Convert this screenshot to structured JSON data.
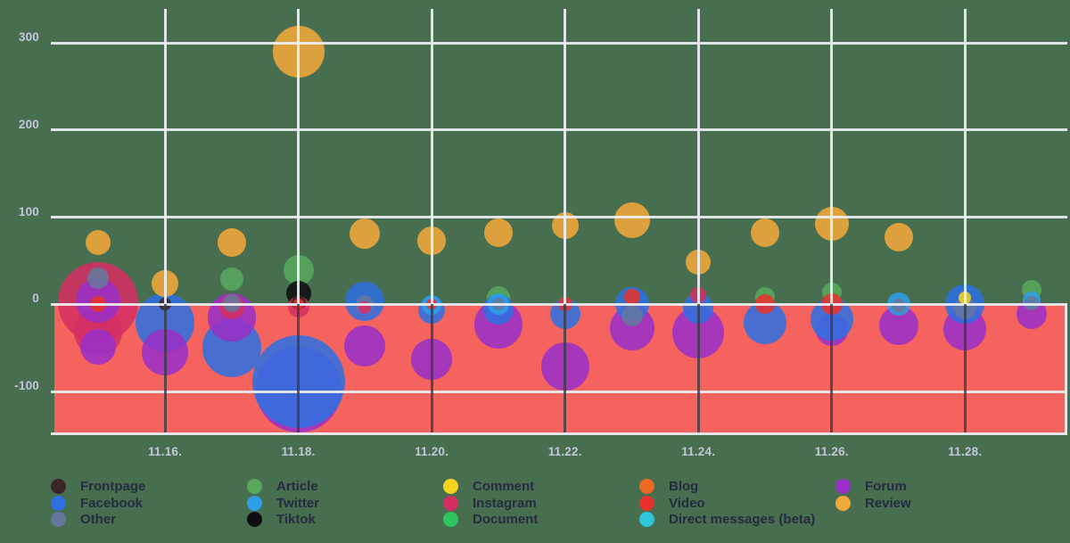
{
  "colors": {
    "page_background": "#486E50",
    "negative_region": "#F5635F",
    "gridline_light": "#EDEFF4",
    "gridline_dark": "#383C44",
    "axis_text": "#C2C7DB",
    "legend_text": "#262B3F"
  },
  "chart_data": {
    "type": "bubble",
    "title": "",
    "xlabel": "",
    "ylabel": "",
    "grid": true,
    "ylim": [
      -150,
      340
    ],
    "y_ticks": [
      300,
      200,
      100,
      0,
      -100
    ],
    "y_tick_labels": [
      "300",
      "200",
      "100",
      "0",
      "-100"
    ],
    "x_grid_days": [
      16,
      18,
      20,
      22,
      24,
      26,
      28
    ],
    "x_tick_labels": [
      "11.16.",
      "11.18.",
      "11.20.",
      "11.22.",
      "11.24.",
      "11.26.",
      "11.28."
    ],
    "negative_region_color": "#F5635F",
    "series_colors": {
      "frontpage": "#3B2526",
      "facebook": "#2E6FE1",
      "other": "#64789E",
      "article": "#57A85C",
      "twitter": "#2D9EE8",
      "tiktok": "#0E0E10",
      "comment": "#F5D21F",
      "instagram": "#D42F63",
      "document": "#2EC45E",
      "blog": "#ED6A24",
      "video": "#E8322E",
      "direct_messages": "#2BC7D6",
      "forum": "#9A2FC8",
      "review": "#F2A93B"
    },
    "bubbles": [
      {
        "day": 15,
        "series": "instagram",
        "value": 2,
        "r": 45
      },
      {
        "day": 15,
        "series": "instagram",
        "value": -31,
        "r": 27
      },
      {
        "day": 15,
        "series": "forum",
        "value": -49,
        "r": 20
      },
      {
        "day": 15,
        "series": "forum",
        "value": 4,
        "r": 25
      },
      {
        "day": 15,
        "series": "other",
        "value": 30,
        "r": 12
      },
      {
        "day": 15,
        "series": "video",
        "value": 0,
        "r": 9
      },
      {
        "day": 15,
        "series": "review",
        "value": 71,
        "r": 14
      },
      {
        "day": 16,
        "series": "facebook",
        "value": -21,
        "r": 33
      },
      {
        "day": 16,
        "series": "forum",
        "value": -55,
        "r": 26
      },
      {
        "day": 16,
        "series": "review",
        "value": 24,
        "r": 15
      },
      {
        "day": 16,
        "series": "frontpage",
        "value": 0,
        "r": 7
      },
      {
        "day": 17,
        "series": "facebook",
        "value": -50,
        "r": 33
      },
      {
        "day": 17,
        "series": "forum",
        "value": -15,
        "r": 27
      },
      {
        "day": 17,
        "series": "instagram",
        "value": -3,
        "r": 14
      },
      {
        "day": 17,
        "series": "other",
        "value": 1,
        "r": 10
      },
      {
        "day": 17,
        "series": "review",
        "value": 71,
        "r": 16
      },
      {
        "day": 17,
        "series": "article",
        "value": 29,
        "r": 13
      },
      {
        "day": 18,
        "series": "forum",
        "value": -98,
        "r": 48
      },
      {
        "day": 18,
        "series": "facebook",
        "value": -89,
        "r": 52
      },
      {
        "day": 18,
        "series": "article",
        "value": 39,
        "r": 17
      },
      {
        "day": 18,
        "series": "tiktok",
        "value": 13,
        "r": 14
      },
      {
        "day": 18,
        "series": "instagram",
        "value": -3,
        "r": 12
      },
      {
        "day": 18,
        "series": "frontpage",
        "value": 2,
        "r": 8
      },
      {
        "day": 18,
        "series": "video",
        "value": 0,
        "r": 6
      },
      {
        "day": 18,
        "series": "review",
        "value": 290,
        "r": 29
      },
      {
        "day": 19,
        "series": "facebook",
        "value": 3,
        "r": 22
      },
      {
        "day": 19,
        "series": "forum",
        "value": -48,
        "r": 23
      },
      {
        "day": 19,
        "series": "other",
        "value": 0,
        "r": 10
      },
      {
        "day": 19,
        "series": "instagram",
        "value": -4,
        "r": 7
      },
      {
        "day": 19,
        "series": "review",
        "value": 81,
        "r": 17
      },
      {
        "day": 20,
        "series": "forum",
        "value": -63,
        "r": 23
      },
      {
        "day": 20,
        "series": "facebook",
        "value": -7,
        "r": 15
      },
      {
        "day": 20,
        "series": "twitter",
        "value": -1,
        "r": 11
      },
      {
        "day": 20,
        "series": "video",
        "value": 0,
        "r": 6
      },
      {
        "day": 20,
        "series": "review",
        "value": 73,
        "r": 16
      },
      {
        "day": 21,
        "series": "forum",
        "value": -23,
        "r": 27
      },
      {
        "day": 21,
        "series": "article",
        "value": 8,
        "r": 13
      },
      {
        "day": 21,
        "series": "facebook",
        "value": -6,
        "r": 17
      },
      {
        "day": 21,
        "series": "twitter",
        "value": 0,
        "r": 12
      },
      {
        "day": 21,
        "series": "other",
        "value": 0,
        "r": 7
      },
      {
        "day": 21,
        "series": "review",
        "value": 82,
        "r": 16
      },
      {
        "day": 22,
        "series": "forum",
        "value": -71,
        "r": 27
      },
      {
        "day": 22,
        "series": "facebook",
        "value": -11,
        "r": 17
      },
      {
        "day": 22,
        "series": "video",
        "value": 0,
        "r": 8
      },
      {
        "day": 22,
        "series": "review",
        "value": 90,
        "r": 15
      },
      {
        "day": 23,
        "series": "forum",
        "value": -27,
        "r": 25
      },
      {
        "day": 23,
        "series": "facebook",
        "value": 0,
        "r": 19
      },
      {
        "day": 23,
        "series": "other",
        "value": -13,
        "r": 12
      },
      {
        "day": 23,
        "series": "video",
        "value": 9,
        "r": 9
      },
      {
        "day": 23,
        "series": "review",
        "value": 97,
        "r": 20
      },
      {
        "day": 24,
        "series": "forum",
        "value": -32,
        "r": 29
      },
      {
        "day": 24,
        "series": "facebook",
        "value": -5,
        "r": 17
      },
      {
        "day": 24,
        "series": "instagram",
        "value": 11,
        "r": 9
      },
      {
        "day": 24,
        "series": "review",
        "value": 48,
        "r": 14
      },
      {
        "day": 25,
        "series": "facebook",
        "value": -21,
        "r": 24
      },
      {
        "day": 25,
        "series": "article",
        "value": 9,
        "r": 11
      },
      {
        "day": 25,
        "series": "video",
        "value": 0,
        "r": 11
      },
      {
        "day": 25,
        "series": "review",
        "value": 82,
        "r": 16
      },
      {
        "day": 26,
        "series": "forum",
        "value": -29,
        "r": 18
      },
      {
        "day": 26,
        "series": "facebook",
        "value": -17,
        "r": 24
      },
      {
        "day": 26,
        "series": "article",
        "value": 14,
        "r": 11
      },
      {
        "day": 26,
        "series": "video",
        "value": 0,
        "r": 12
      },
      {
        "day": 26,
        "series": "review",
        "value": 92,
        "r": 19
      },
      {
        "day": 27,
        "series": "forum",
        "value": -24,
        "r": 22
      },
      {
        "day": 27,
        "series": "twitter",
        "value": 0,
        "r": 13
      },
      {
        "day": 27,
        "series": "other",
        "value": -2,
        "r": 8
      },
      {
        "day": 27,
        "series": "review",
        "value": 77,
        "r": 16
      },
      {
        "day": 28,
        "series": "forum",
        "value": -28,
        "r": 24
      },
      {
        "day": 28,
        "series": "facebook",
        "value": 0,
        "r": 22
      },
      {
        "day": 28,
        "series": "other",
        "value": -5,
        "r": 12
      },
      {
        "day": 28,
        "series": "comment",
        "value": 8,
        "r": 7
      },
      {
        "day": 29,
        "series": "forum",
        "value": -11,
        "r": 17
      },
      {
        "day": 29,
        "series": "article",
        "value": 17,
        "r": 11
      },
      {
        "day": 29,
        "series": "twitter",
        "value": 4,
        "r": 10
      },
      {
        "day": 29,
        "series": "other",
        "value": 1,
        "r": 8
      }
    ]
  },
  "legend": {
    "columns": [
      [
        {
          "series": "frontpage",
          "label": "Frontpage"
        },
        {
          "series": "facebook",
          "label": "Facebook"
        },
        {
          "series": "other",
          "label": "Other"
        }
      ],
      [
        {
          "series": "article",
          "label": "Article"
        },
        {
          "series": "twitter",
          "label": "Twitter"
        },
        {
          "series": "tiktok",
          "label": "Tiktok"
        }
      ],
      [
        {
          "series": "comment",
          "label": "Comment"
        },
        {
          "series": "instagram",
          "label": "Instagram"
        },
        {
          "series": "document",
          "label": "Document"
        }
      ],
      [
        {
          "series": "blog",
          "label": "Blog"
        },
        {
          "series": "video",
          "label": "Video"
        },
        {
          "series": "direct_messages",
          "label": "Direct messages (beta)"
        }
      ],
      [
        {
          "series": "forum",
          "label": "Forum"
        },
        {
          "series": "review",
          "label": "Review"
        }
      ]
    ]
  }
}
